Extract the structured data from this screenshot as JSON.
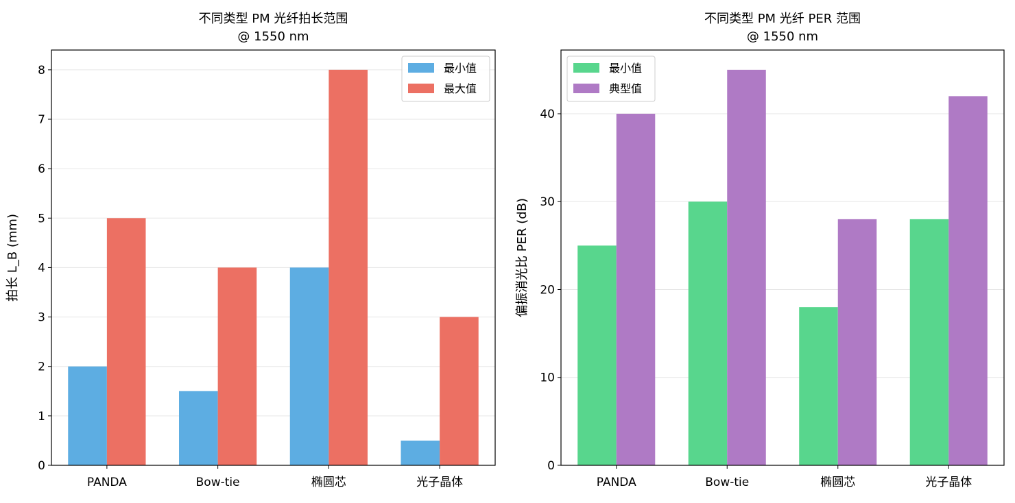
{
  "chart_data": [
    {
      "type": "bar",
      "title": "不同类型 PM 光纤拍长范围\n@ 1550 nm",
      "xlabel": "",
      "ylabel": "拍长 L_B (mm)",
      "categories": [
        "PANDA",
        "Bow-tie",
        "椭圆芯",
        "光子晶体"
      ],
      "series": [
        {
          "name": "最小值",
          "values": [
            2,
            1.5,
            4,
            0.5
          ],
          "color": "#5DADE2"
        },
        {
          "name": "最大值",
          "values": [
            5,
            4,
            8,
            3
          ],
          "color": "#EC7063"
        }
      ],
      "ylim": [
        0,
        8.4
      ],
      "yticks": [
        0,
        1,
        2,
        3,
        4,
        5,
        6,
        7,
        8
      ],
      "grid": "y",
      "legend": "top-right"
    },
    {
      "type": "bar",
      "title": "不同类型 PM 光纤 PER 范围\n@ 1550 nm",
      "xlabel": "",
      "ylabel": "偏振消光比 PER (dB)",
      "categories": [
        "PANDA",
        "Bow-tie",
        "椭圆芯",
        "光子晶体"
      ],
      "series": [
        {
          "name": "最小值",
          "values": [
            25,
            30,
            18,
            28
          ],
          "color": "#58D68D"
        },
        {
          "name": "典型值",
          "values": [
            40,
            45,
            28,
            42
          ],
          "color": "#AF7AC5"
        }
      ],
      "ylim": [
        0,
        47.25
      ],
      "yticks": [
        0,
        10,
        20,
        30,
        40
      ],
      "grid": "y",
      "legend": "top-left"
    }
  ]
}
